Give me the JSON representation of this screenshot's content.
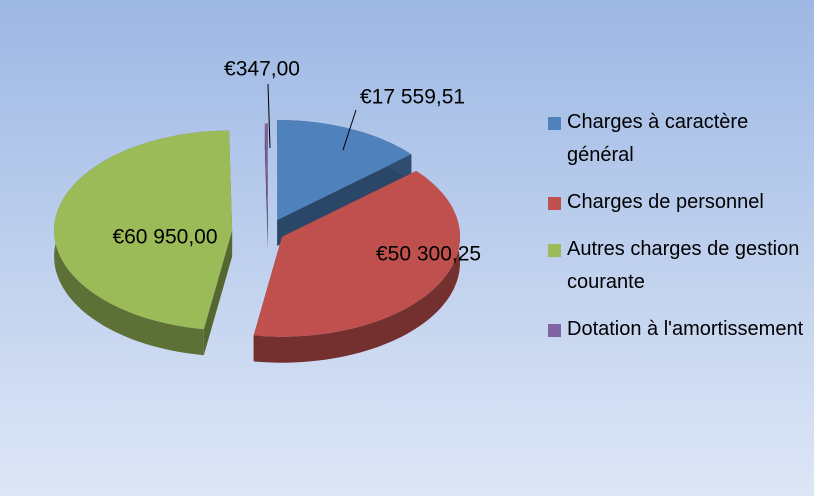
{
  "chart_data": {
    "type": "pie",
    "categories": [
      "Charges à caractère général",
      "Charges de personnel",
      "Autres charges de gestion courante",
      "Dotation à l'amortissement"
    ],
    "values": [
      17559.51,
      50300.25,
      60950.0,
      347.0
    ],
    "value_labels": [
      "€17 559,51",
      "€50 300,25",
      "€60 950,00",
      "€347,00"
    ],
    "colors": [
      "#4f81bd",
      "#c0504d",
      "#9bbb59",
      "#8064a2"
    ],
    "legend": "right"
  }
}
